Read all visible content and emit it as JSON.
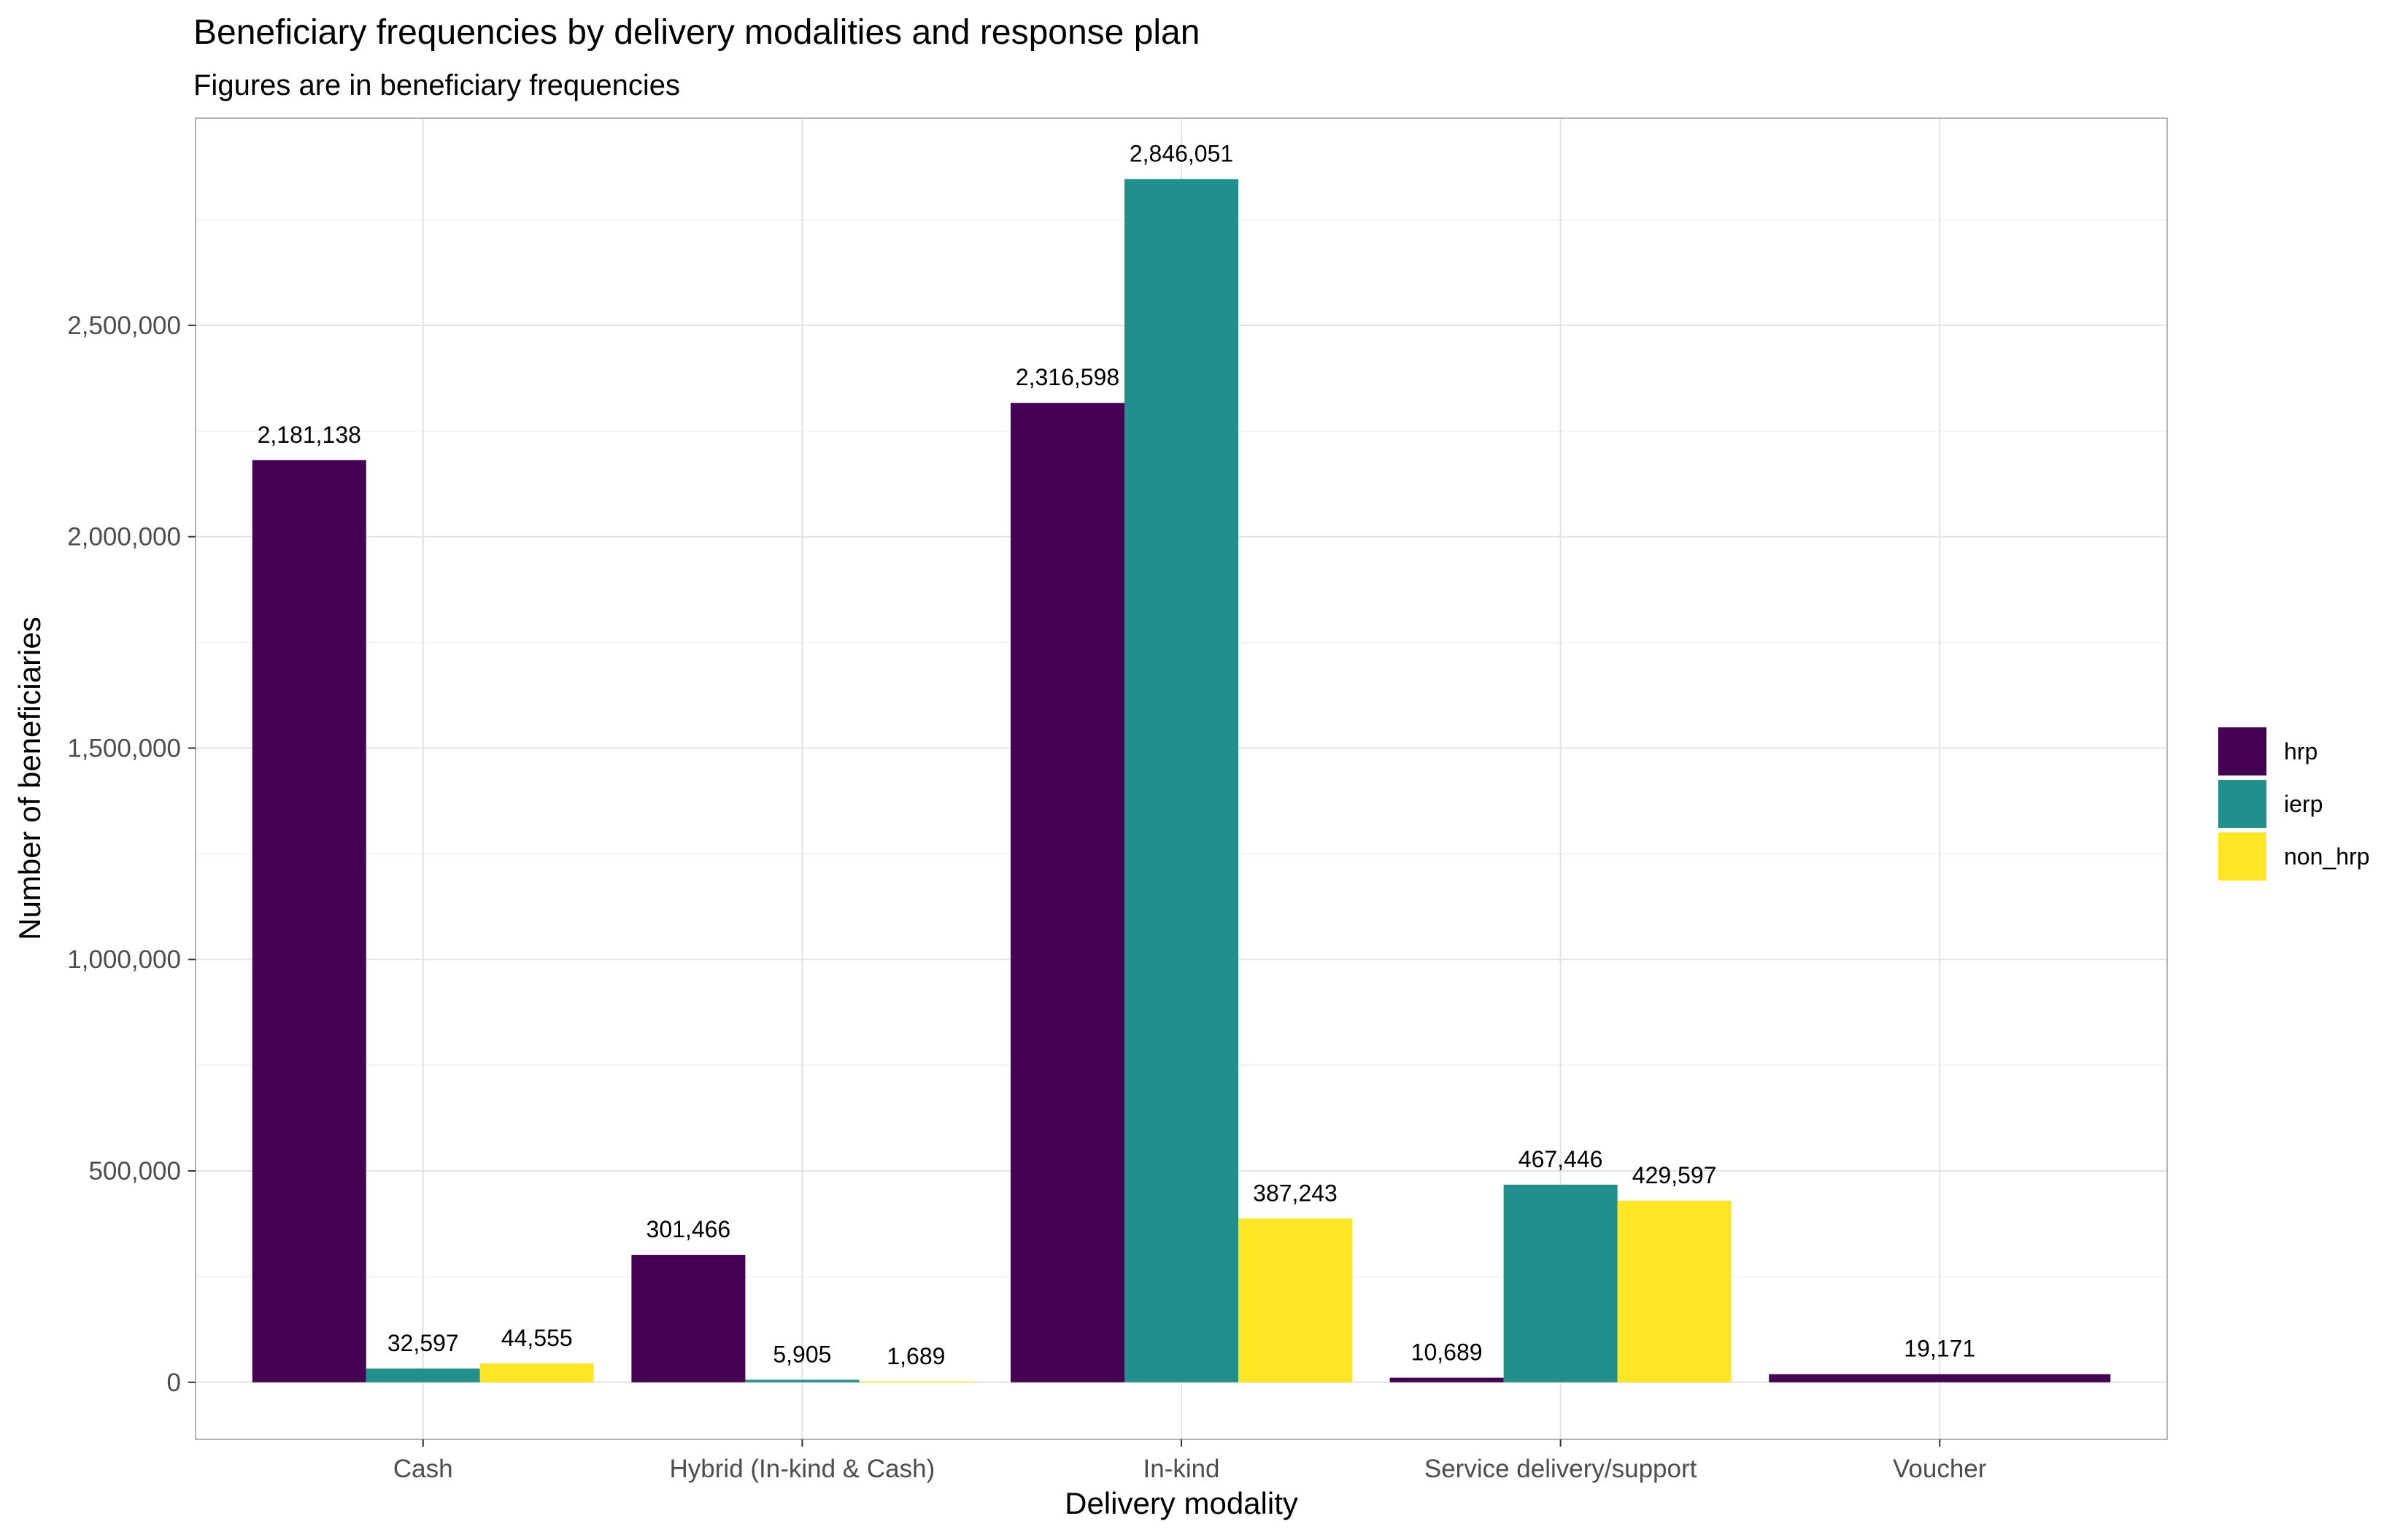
{
  "chart_data": {
    "type": "bar",
    "title": "Beneficiary frequencies by delivery modalities and response plan",
    "subtitle": "Figures are in beneficiary frequencies",
    "xlabel": "Delivery modality",
    "ylabel": "Number of beneficiaries",
    "categories": [
      "Cash",
      "Hybrid (In-kind & Cash)",
      "In-kind",
      "Service delivery/support",
      "Voucher"
    ],
    "series": [
      {
        "name": "hrp",
        "color": "#440154",
        "values": [
          2181138,
          301466,
          2316598,
          10689,
          19171
        ]
      },
      {
        "name": "ierp",
        "color": "#21908C",
        "values": [
          32597,
          5905,
          2846051,
          467446,
          null
        ]
      },
      {
        "name": "non_hrp",
        "color": "#FDE725",
        "values": [
          44555,
          1689,
          387243,
          429597,
          null
        ]
      }
    ],
    "data_labels": [
      [
        "2,181,138",
        "301,466",
        "2,316,598",
        "10,689",
        "19,171"
      ],
      [
        "32,597",
        "5,905",
        "2,846,051",
        "467,446",
        ""
      ],
      [
        "44,555",
        "1,689",
        "387,243",
        "429,597",
        ""
      ]
    ],
    "yticks": [
      0,
      500000,
      1000000,
      1500000,
      2000000,
      2500000
    ],
    "ytick_labels": [
      "0",
      "500,000",
      "1,000,000",
      "1,500,000",
      "2,000,000",
      "2,500,000"
    ],
    "ylim": [
      -135000,
      2990000
    ],
    "grid": true,
    "legend_position": "right",
    "legend_entries": [
      "hrp",
      "ierp",
      "non_hrp"
    ]
  }
}
